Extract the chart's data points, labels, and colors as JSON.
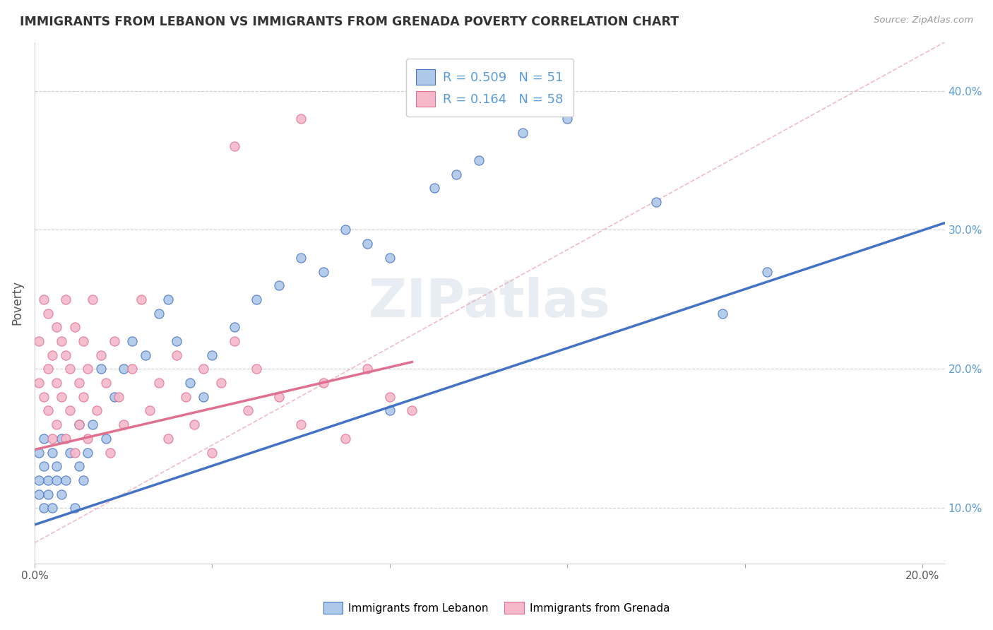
{
  "title": "IMMIGRANTS FROM LEBANON VS IMMIGRANTS FROM GRENADA POVERTY CORRELATION CHART",
  "source_text": "Source: ZipAtlas.com",
  "ylabel": "Poverty",
  "xlim": [
    0.0,
    0.205
  ],
  "ylim": [
    0.06,
    0.435
  ],
  "xticks": [
    0.0,
    0.04,
    0.08,
    0.12,
    0.16,
    0.2
  ],
  "yticks": [
    0.1,
    0.2,
    0.3,
    0.4
  ],
  "legend_r1": "R = 0.509   N = 51",
  "legend_r2": "R = 0.164   N = 58",
  "color_lebanon": "#adc8e8",
  "color_grenada": "#f5b8cb",
  "color_line_lebanon": "#4472c4",
  "color_line_grenada": "#e07090",
  "color_diag": "#e8a0b0",
  "watermark": "ZIPatlas",
  "lebanon_line_x": [
    0.0,
    0.205
  ],
  "lebanon_line_y": [
    0.088,
    0.305
  ],
  "grenada_line_x": [
    0.0,
    0.085
  ],
  "grenada_line_y": [
    0.142,
    0.205
  ],
  "diag_line_x": [
    0.0,
    0.205
  ],
  "diag_line_y": [
    0.075,
    0.435
  ],
  "lebanon_scatter_x": [
    0.001,
    0.001,
    0.001,
    0.002,
    0.002,
    0.002,
    0.003,
    0.003,
    0.004,
    0.004,
    0.005,
    0.005,
    0.006,
    0.006,
    0.007,
    0.008,
    0.009,
    0.01,
    0.01,
    0.011,
    0.012,
    0.013,
    0.015,
    0.016,
    0.018,
    0.02,
    0.022,
    0.025,
    0.028,
    0.03,
    0.032,
    0.035,
    0.038,
    0.04,
    0.045,
    0.05,
    0.055,
    0.06,
    0.065,
    0.07,
    0.075,
    0.08,
    0.09,
    0.095,
    0.1,
    0.11,
    0.12,
    0.14,
    0.155,
    0.165,
    0.08
  ],
  "lebanon_scatter_y": [
    0.12,
    0.14,
    0.11,
    0.13,
    0.1,
    0.15,
    0.12,
    0.11,
    0.14,
    0.1,
    0.13,
    0.12,
    0.15,
    0.11,
    0.12,
    0.14,
    0.1,
    0.13,
    0.16,
    0.12,
    0.14,
    0.16,
    0.2,
    0.15,
    0.18,
    0.2,
    0.22,
    0.21,
    0.24,
    0.25,
    0.22,
    0.19,
    0.18,
    0.21,
    0.23,
    0.25,
    0.26,
    0.28,
    0.27,
    0.3,
    0.29,
    0.28,
    0.33,
    0.34,
    0.35,
    0.37,
    0.38,
    0.32,
    0.24,
    0.27,
    0.17
  ],
  "grenada_scatter_x": [
    0.001,
    0.001,
    0.002,
    0.002,
    0.003,
    0.003,
    0.003,
    0.004,
    0.004,
    0.005,
    0.005,
    0.005,
    0.006,
    0.006,
    0.007,
    0.007,
    0.007,
    0.008,
    0.008,
    0.009,
    0.009,
    0.01,
    0.01,
    0.011,
    0.011,
    0.012,
    0.012,
    0.013,
    0.014,
    0.015,
    0.016,
    0.017,
    0.018,
    0.019,
    0.02,
    0.022,
    0.024,
    0.026,
    0.028,
    0.03,
    0.032,
    0.034,
    0.036,
    0.038,
    0.04,
    0.042,
    0.045,
    0.048,
    0.05,
    0.055,
    0.06,
    0.065,
    0.07,
    0.075,
    0.08,
    0.085,
    0.045,
    0.06
  ],
  "grenada_scatter_y": [
    0.19,
    0.22,
    0.18,
    0.25,
    0.2,
    0.17,
    0.24,
    0.21,
    0.15,
    0.19,
    0.23,
    0.16,
    0.22,
    0.18,
    0.21,
    0.25,
    0.15,
    0.2,
    0.17,
    0.23,
    0.14,
    0.19,
    0.16,
    0.22,
    0.18,
    0.2,
    0.15,
    0.25,
    0.17,
    0.21,
    0.19,
    0.14,
    0.22,
    0.18,
    0.16,
    0.2,
    0.25,
    0.17,
    0.19,
    0.15,
    0.21,
    0.18,
    0.16,
    0.2,
    0.14,
    0.19,
    0.22,
    0.17,
    0.2,
    0.18,
    0.16,
    0.19,
    0.15,
    0.2,
    0.18,
    0.17,
    0.36,
    0.38
  ]
}
